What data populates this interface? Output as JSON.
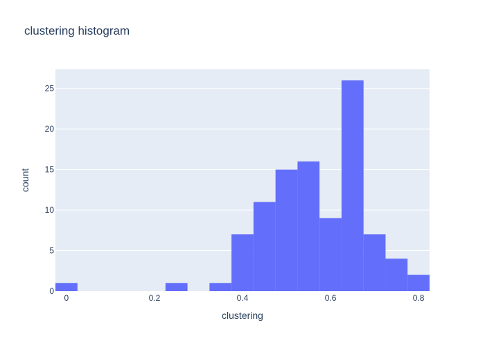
{
  "chart_data": {
    "type": "bar",
    "title": "clustering histogram",
    "xlabel": "clustering",
    "ylabel": "count",
    "xlim": [
      -0.025,
      0.825
    ],
    "ylim": [
      0,
      27.37
    ],
    "bin_width": 0.05,
    "bins": [
      {
        "start": -0.025,
        "end": 0.025,
        "count": 1
      },
      {
        "start": 0.225,
        "end": 0.275,
        "count": 1
      },
      {
        "start": 0.325,
        "end": 0.375,
        "count": 1
      },
      {
        "start": 0.375,
        "end": 0.425,
        "count": 7
      },
      {
        "start": 0.425,
        "end": 0.475,
        "count": 11
      },
      {
        "start": 0.475,
        "end": 0.525,
        "count": 15
      },
      {
        "start": 0.525,
        "end": 0.575,
        "count": 16
      },
      {
        "start": 0.575,
        "end": 0.625,
        "count": 9
      },
      {
        "start": 0.625,
        "end": 0.675,
        "count": 26
      },
      {
        "start": 0.675,
        "end": 0.725,
        "count": 7
      },
      {
        "start": 0.725,
        "end": 0.775,
        "count": 4
      },
      {
        "start": 0.775,
        "end": 0.825,
        "count": 2
      }
    ],
    "x_ticks": [
      {
        "value": 0,
        "label": "0"
      },
      {
        "value": 0.2,
        "label": "0.2"
      },
      {
        "value": 0.4,
        "label": "0.4"
      },
      {
        "value": 0.6,
        "label": "0.6"
      },
      {
        "value": 0.8,
        "label": "0.8"
      }
    ],
    "y_ticks": [
      {
        "value": 0,
        "label": "0"
      },
      {
        "value": 5,
        "label": "5"
      },
      {
        "value": 10,
        "label": "10"
      },
      {
        "value": 15,
        "label": "15"
      },
      {
        "value": 20,
        "label": "20"
      },
      {
        "value": 25,
        "label": "25"
      }
    ],
    "grid": true,
    "colors": {
      "bar": "#636efa",
      "plot_background": "#e5ecf6",
      "gridline": "#ffffff",
      "text": "#2a3f5f",
      "title": "#2a3f5f"
    }
  }
}
